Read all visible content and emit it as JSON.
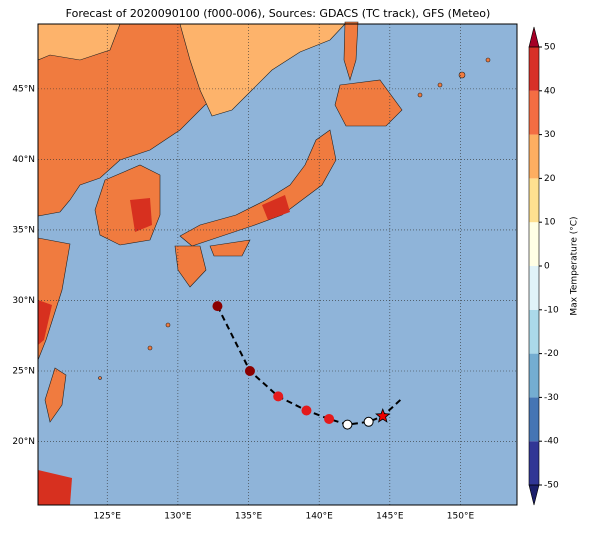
{
  "map": {
    "title": "Forecast of 2020090100 (f000-006), Sources: GDACS (TC track), GFS (Meteo)",
    "lon_range": [
      120.1,
      154
    ],
    "lat_range": [
      15.5,
      49.6
    ],
    "lon_ticks": [
      {
        "value": 125,
        "label": "125°E"
      },
      {
        "value": 130,
        "label": "130°E"
      },
      {
        "value": 135,
        "label": "135°E"
      },
      {
        "value": 140,
        "label": "140°E"
      },
      {
        "value": 145,
        "label": "145°E"
      },
      {
        "value": 150,
        "label": "150°E"
      }
    ],
    "lat_ticks": [
      {
        "value": 45,
        "label": "45°N"
      },
      {
        "value": 40,
        "label": "40°N"
      },
      {
        "value": 35,
        "label": "35°N"
      },
      {
        "value": 30,
        "label": "30°N"
      },
      {
        "value": 25,
        "label": "25°N"
      },
      {
        "value": 20,
        "label": "20°N"
      }
    ],
    "track": {
      "lon": [
        132.8,
        135.1,
        137.1,
        139.1,
        140.7,
        142.0,
        143.5,
        144.5,
        145.8
      ],
      "lat": [
        29.6,
        25.0,
        23.2,
        22.2,
        21.6,
        21.2,
        21.4,
        21.8,
        23.0
      ]
    }
  },
  "colorbar": {
    "label": "Max Temperature (°C)",
    "lim": [
      -50,
      50
    ],
    "ticks": [
      50,
      40,
      30,
      20,
      10,
      0,
      -10,
      -20,
      -30,
      -40,
      -50
    ],
    "colors": [
      "#313695",
      "#4575b4",
      "#74add1",
      "#abd9e9",
      "#e0f3f8",
      "#ffffe5",
      "#fee090",
      "#fdae61",
      "#f46d43",
      "#d73027"
    ],
    "under_color": "#1b1f6b",
    "over_color": "#a50026"
  }
}
